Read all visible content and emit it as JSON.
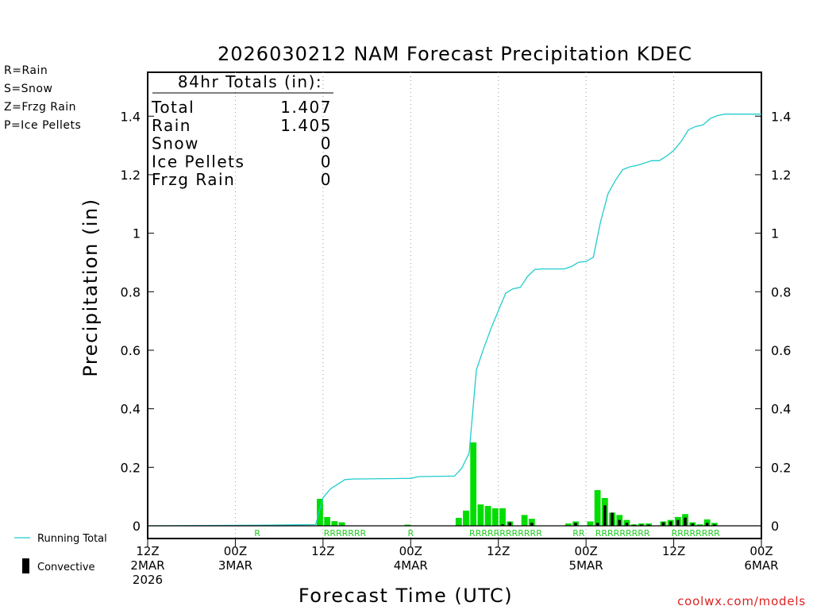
{
  "chart_data": {
    "type": "bar",
    "title": "2026030212 NAM Forecast Precipitation KDEC",
    "ylabel": "Precipitation (in)",
    "xlabel": "Forecast Time (UTC)",
    "ylim": [
      0,
      1.55
    ],
    "y_ticks": [
      0,
      0.2,
      0.4,
      0.6,
      0.8,
      1,
      1.2,
      1.4
    ],
    "y_tick_labels": [
      "0",
      "0.2",
      "0.4",
      "0.6",
      "0.8",
      "1",
      "1.2",
      "1.4"
    ],
    "x_range_hours": [
      0,
      84
    ],
    "x_ticks": [
      {
        "hour": 0,
        "lines": [
          "12Z",
          "2MAR",
          "2026"
        ]
      },
      {
        "hour": 12,
        "lines": [
          "00Z",
          "3MAR"
        ]
      },
      {
        "hour": 24,
        "lines": [
          "12Z"
        ]
      },
      {
        "hour": 36,
        "lines": [
          "00Z",
          "4MAR"
        ]
      },
      {
        "hour": 48,
        "lines": [
          "12Z"
        ]
      },
      {
        "hour": 60,
        "lines": [
          "00Z",
          "5MAR"
        ]
      },
      {
        "hour": 72,
        "lines": [
          "12Z"
        ]
      },
      {
        "hour": 84,
        "lines": [
          "00Z",
          "6MAR"
        ]
      }
    ],
    "grid_hours": [
      12,
      24,
      36,
      48,
      60,
      72
    ],
    "series": [
      {
        "name": "Precipitation",
        "color": "#00dd00",
        "points": [
          [
            15,
            0.002
          ],
          [
            24,
            0.092
          ],
          [
            25,
            0.03
          ],
          [
            26,
            0.016
          ],
          [
            27,
            0.012
          ],
          [
            36,
            0.004
          ],
          [
            43,
            0.027
          ],
          [
            44,
            0.052
          ],
          [
            45,
            0.285
          ],
          [
            46,
            0.073
          ],
          [
            47,
            0.068
          ],
          [
            48,
            0.06
          ],
          [
            49,
            0.06
          ],
          [
            50,
            0.015
          ],
          [
            52,
            0.037
          ],
          [
            53,
            0.024
          ],
          [
            58,
            0.008
          ],
          [
            59,
            0.015
          ],
          [
            61,
            0.015
          ],
          [
            62,
            0.122
          ],
          [
            63,
            0.095
          ],
          [
            64,
            0.045
          ],
          [
            65,
            0.037
          ],
          [
            66,
            0.02
          ],
          [
            67,
            0.005
          ],
          [
            68,
            0.008
          ],
          [
            69,
            0.008
          ],
          [
            71,
            0.015
          ],
          [
            72,
            0.02
          ],
          [
            73,
            0.03
          ],
          [
            74,
            0.04
          ],
          [
            75,
            0.012
          ],
          [
            76,
            0.005
          ],
          [
            77,
            0.022
          ],
          [
            78,
            0.01
          ]
        ]
      },
      {
        "name": "Convective",
        "color": "#000000",
        "points": [
          [
            49,
            0.005
          ],
          [
            50,
            0.012
          ],
          [
            53,
            0.01
          ],
          [
            59,
            0.01
          ],
          [
            62,
            0.01
          ],
          [
            63,
            0.07
          ],
          [
            64,
            0.045
          ],
          [
            65,
            0.02
          ],
          [
            66,
            0.01
          ],
          [
            67,
            0.003
          ],
          [
            68,
            0.004
          ],
          [
            69,
            0.004
          ],
          [
            71,
            0.012
          ],
          [
            72,
            0.015
          ],
          [
            73,
            0.02
          ],
          [
            74,
            0.028
          ],
          [
            75,
            0.008
          ],
          [
            77,
            0.01
          ],
          [
            78,
            0.005
          ]
        ]
      },
      {
        "name": "Running Total",
        "color": "#22cccc",
        "points": [
          [
            0,
            0
          ],
          [
            15,
            0.002
          ],
          [
            23,
            0.004
          ],
          [
            24,
            0.096
          ],
          [
            25,
            0.126
          ],
          [
            26,
            0.142
          ],
          [
            27,
            0.158
          ],
          [
            28,
            0.16
          ],
          [
            36,
            0.162
          ],
          [
            37,
            0.168
          ],
          [
            42,
            0.17
          ],
          [
            43,
            0.197
          ],
          [
            44,
            0.249
          ],
          [
            45,
            0.534
          ],
          [
            46,
            0.607
          ],
          [
            47,
            0.675
          ],
          [
            48,
            0.735
          ],
          [
            49,
            0.795
          ],
          [
            50,
            0.81
          ],
          [
            51,
            0.815
          ],
          [
            52,
            0.852
          ],
          [
            53,
            0.876
          ],
          [
            54,
            0.878
          ],
          [
            57,
            0.878
          ],
          [
            58,
            0.886
          ],
          [
            59,
            0.901
          ],
          [
            60,
            0.903
          ],
          [
            61,
            0.918
          ],
          [
            62,
            1.04
          ],
          [
            63,
            1.135
          ],
          [
            64,
            1.18
          ],
          [
            65,
            1.217
          ],
          [
            66,
            1.227
          ],
          [
            67,
            1.232
          ],
          [
            68,
            1.24
          ],
          [
            69,
            1.248
          ],
          [
            70,
            1.248
          ],
          [
            71,
            1.263
          ],
          [
            72,
            1.283
          ],
          [
            73,
            1.313
          ],
          [
            74,
            1.353
          ],
          [
            75,
            1.365
          ],
          [
            76,
            1.37
          ],
          [
            77,
            1.392
          ],
          [
            78,
            1.402
          ],
          [
            79,
            1.407
          ],
          [
            84,
            1.407
          ]
        ]
      }
    ],
    "ptype_markers": [
      {
        "hour": 15,
        "text": "R"
      },
      {
        "hour": 27,
        "text": "RRRRRRR"
      },
      {
        "hour": 36,
        "text": "R"
      },
      {
        "hour": 49,
        "text": "RRRRRRRRRRRR"
      },
      {
        "hour": 59,
        "text": "RR"
      },
      {
        "hour": 65,
        "text": "RRRRRRRRR"
      },
      {
        "hour": 75,
        "text": "RRRRRRRR"
      }
    ],
    "totals_box": {
      "header": "84hr Totals (in):",
      "rows": [
        {
          "label": "Total",
          "value": "1.407"
        },
        {
          "label": "Rain",
          "value": "1.405"
        },
        {
          "label": "Snow",
          "value": "0"
        },
        {
          "label": "Ice Pellets",
          "value": "0"
        },
        {
          "label": "Frzg Rain",
          "value": "0"
        }
      ]
    },
    "ptype_legend": [
      {
        "text": "R=Rain",
        "color": "#22cc22"
      },
      {
        "text": "S=Snow",
        "color": "#3344ee"
      },
      {
        "text": "Z=Frzg Rain",
        "color": "#ee8833"
      },
      {
        "text": "P=Ice Pellets",
        "color": "#ee1199"
      }
    ],
    "legend": {
      "running_total": "Running Total",
      "convective": "Convective"
    },
    "credit": "coolwx.com/models"
  }
}
